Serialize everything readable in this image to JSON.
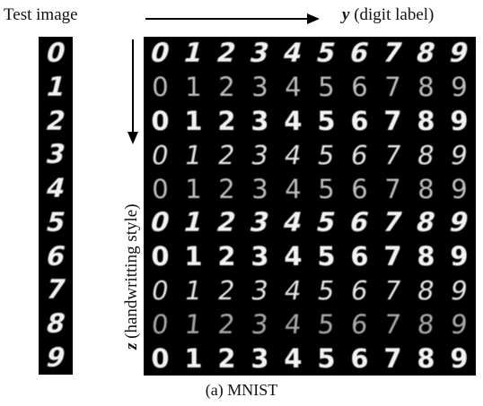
{
  "labels": {
    "test_image": "Test image",
    "y_symbol": "y",
    "y_text": "(digit label)",
    "z_symbol": "z",
    "z_text": "(handwritting style)",
    "caption": "(a) MNIST"
  },
  "test_column": [
    "0",
    "1",
    "2",
    "3",
    "4",
    "5",
    "6",
    "7",
    "8",
    "9"
  ],
  "grid": {
    "columns": [
      "0",
      "1",
      "2",
      "3",
      "4",
      "5",
      "6",
      "7",
      "8",
      "9"
    ],
    "rows": [
      {
        "style": "italic-bold",
        "digits": [
          "0",
          "1",
          "2",
          "3",
          "4",
          "5",
          "6",
          "7",
          "8",
          "9"
        ]
      },
      {
        "style": "thin-upright",
        "digits": [
          "0",
          "1",
          "2",
          "3",
          "4",
          "5",
          "6",
          "7",
          "8",
          "9"
        ]
      },
      {
        "style": "bold-upright",
        "digits": [
          "0",
          "1",
          "2",
          "3",
          "4",
          "5",
          "6",
          "7",
          "8",
          "9"
        ]
      },
      {
        "style": "slanted",
        "digits": [
          "0",
          "1",
          "2",
          "3",
          "4",
          "5",
          "6",
          "7",
          "8",
          "9"
        ]
      },
      {
        "style": "thin-upright",
        "digits": [
          "0",
          "1",
          "2",
          "3",
          "4",
          "5",
          "6",
          "7",
          "8",
          "9"
        ]
      },
      {
        "style": "italic-bold",
        "digits": [
          "0",
          "1",
          "2",
          "3",
          "4",
          "5",
          "6",
          "7",
          "8",
          "9"
        ]
      },
      {
        "style": "bold-upright",
        "digits": [
          "0",
          "1",
          "2",
          "3",
          "4",
          "5",
          "6",
          "7",
          "8",
          "9"
        ]
      },
      {
        "style": "slanted",
        "digits": [
          "0",
          "1",
          "2",
          "3",
          "4",
          "5",
          "6",
          "7",
          "8",
          "9"
        ]
      },
      {
        "style": "faint",
        "digits": [
          "0",
          "1",
          "2",
          "3",
          "4",
          "5",
          "6",
          "7",
          "8",
          "9"
        ]
      },
      {
        "style": "bold-upright",
        "digits": [
          "0",
          "1",
          "2",
          "3",
          "4",
          "5",
          "6",
          "7",
          "8",
          "9"
        ]
      }
    ]
  }
}
